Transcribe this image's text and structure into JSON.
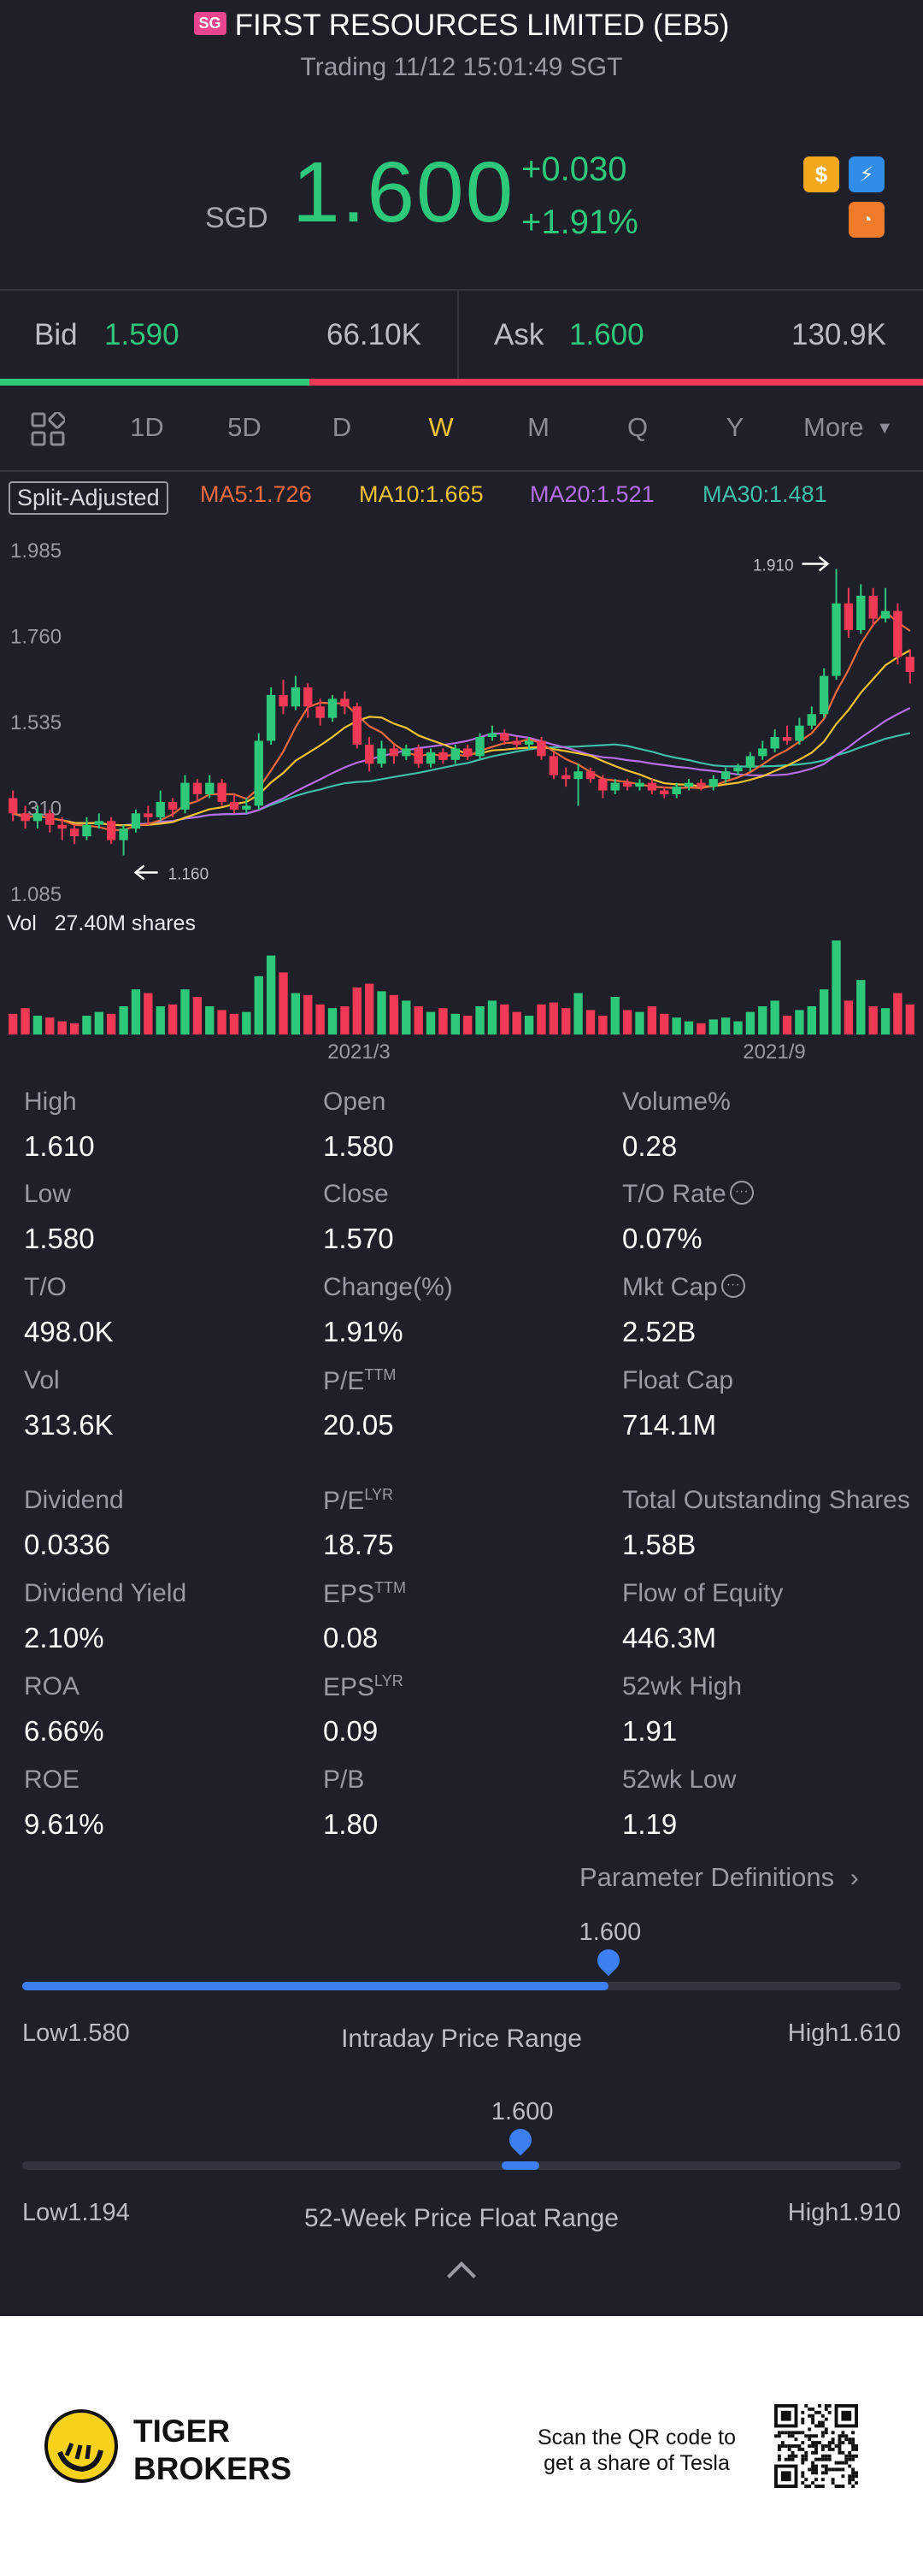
{
  "header": {
    "badge": "SG",
    "title": "FIRST RESOURCES LIMITED (EB5)",
    "subtitle": "Trading 11/12 15:01:49 SGT"
  },
  "quote": {
    "currency": "SGD",
    "price": "1.600",
    "change": "+0.030",
    "change_pct": "+1.91%",
    "icons": [
      "dollar-icon",
      "lightning-icon",
      "pie-icon"
    ],
    "up_color": "#2ec87a",
    "down_color": "#f03a55"
  },
  "bidask": {
    "bid_label": "Bid",
    "bid_price": "1.590",
    "bid_size": "66.10K",
    "ask_label": "Ask",
    "ask_price": "1.600",
    "ask_size": "130.9K",
    "bid_share": 0.335
  },
  "tabs": {
    "items": [
      "1D",
      "5D",
      "D",
      "W",
      "M",
      "Q",
      "Y"
    ],
    "active": "W",
    "more": "More"
  },
  "legend": {
    "split": "Split-Adjusted",
    "ma5": "MA5:1.726",
    "ma10": "MA10:1.665",
    "ma20": "MA20:1.521",
    "ma30": "MA30:1.481"
  },
  "chart_data": {
    "type": "candlestick",
    "y_ticks": [
      "1.985",
      "1.760",
      "1.535",
      "1.310",
      "1.085"
    ],
    "ylim": [
      1.085,
      1.985
    ],
    "x_ticks": [
      "2021/3",
      "2021/9"
    ],
    "max_label": "1.910",
    "min_label": "1.160",
    "volume_label": "Vol   27.40M shares",
    "candles": [
      [
        1.31,
        1.27,
        1.33,
        1.25,
        "d"
      ],
      [
        1.27,
        1.25,
        1.29,
        1.23,
        "d"
      ],
      [
        1.25,
        1.27,
        1.29,
        1.23,
        "u"
      ],
      [
        1.27,
        1.24,
        1.28,
        1.22,
        "d"
      ],
      [
        1.24,
        1.23,
        1.26,
        1.2,
        "d"
      ],
      [
        1.23,
        1.21,
        1.24,
        1.19,
        "d"
      ],
      [
        1.21,
        1.24,
        1.26,
        1.2,
        "u"
      ],
      [
        1.24,
        1.25,
        1.27,
        1.23,
        "u"
      ],
      [
        1.25,
        1.2,
        1.26,
        1.19,
        "d"
      ],
      [
        1.2,
        1.23,
        1.24,
        1.16,
        "u"
      ],
      [
        1.23,
        1.27,
        1.28,
        1.22,
        "u"
      ],
      [
        1.27,
        1.26,
        1.29,
        1.24,
        "d"
      ],
      [
        1.26,
        1.3,
        1.33,
        1.25,
        "u"
      ],
      [
        1.3,
        1.28,
        1.31,
        1.26,
        "d"
      ],
      [
        1.28,
        1.35,
        1.37,
        1.27,
        "u"
      ],
      [
        1.35,
        1.32,
        1.36,
        1.3,
        "d"
      ],
      [
        1.32,
        1.35,
        1.37,
        1.31,
        "u"
      ],
      [
        1.35,
        1.3,
        1.36,
        1.29,
        "d"
      ],
      [
        1.3,
        1.28,
        1.32,
        1.27,
        "d"
      ],
      [
        1.28,
        1.29,
        1.31,
        1.27,
        "u"
      ],
      [
        1.29,
        1.46,
        1.48,
        1.28,
        "u"
      ],
      [
        1.46,
        1.58,
        1.6,
        1.45,
        "u"
      ],
      [
        1.58,
        1.55,
        1.62,
        1.53,
        "d"
      ],
      [
        1.55,
        1.6,
        1.63,
        1.54,
        "u"
      ],
      [
        1.6,
        1.55,
        1.61,
        1.52,
        "d"
      ],
      [
        1.55,
        1.52,
        1.57,
        1.5,
        "d"
      ],
      [
        1.52,
        1.57,
        1.58,
        1.51,
        "u"
      ],
      [
        1.57,
        1.55,
        1.59,
        1.53,
        "d"
      ],
      [
        1.55,
        1.45,
        1.56,
        1.44,
        "d"
      ],
      [
        1.45,
        1.4,
        1.47,
        1.38,
        "d"
      ],
      [
        1.4,
        1.44,
        1.46,
        1.39,
        "u"
      ],
      [
        1.44,
        1.42,
        1.45,
        1.4,
        "d"
      ],
      [
        1.42,
        1.44,
        1.45,
        1.41,
        "u"
      ],
      [
        1.44,
        1.4,
        1.45,
        1.39,
        "d"
      ],
      [
        1.4,
        1.43,
        1.44,
        1.39,
        "u"
      ],
      [
        1.43,
        1.41,
        1.44,
        1.4,
        "d"
      ],
      [
        1.41,
        1.44,
        1.45,
        1.4,
        "u"
      ],
      [
        1.44,
        1.42,
        1.45,
        1.41,
        "d"
      ],
      [
        1.42,
        1.47,
        1.48,
        1.41,
        "u"
      ],
      [
        1.47,
        1.48,
        1.5,
        1.46,
        "u"
      ],
      [
        1.48,
        1.46,
        1.49,
        1.45,
        "d"
      ],
      [
        1.46,
        1.45,
        1.47,
        1.44,
        "d"
      ],
      [
        1.45,
        1.46,
        1.47,
        1.44,
        "u"
      ],
      [
        1.46,
        1.42,
        1.47,
        1.41,
        "d"
      ],
      [
        1.42,
        1.37,
        1.43,
        1.36,
        "d"
      ],
      [
        1.37,
        1.36,
        1.39,
        1.34,
        "d"
      ],
      [
        1.36,
        1.38,
        1.4,
        1.29,
        "u"
      ],
      [
        1.38,
        1.36,
        1.39,
        1.35,
        "d"
      ],
      [
        1.36,
        1.33,
        1.37,
        1.31,
        "d"
      ],
      [
        1.33,
        1.35,
        1.36,
        1.32,
        "u"
      ],
      [
        1.35,
        1.34,
        1.36,
        1.33,
        "d"
      ],
      [
        1.34,
        1.35,
        1.36,
        1.33,
        "u"
      ],
      [
        1.35,
        1.33,
        1.36,
        1.32,
        "d"
      ],
      [
        1.33,
        1.32,
        1.34,
        1.31,
        "d"
      ],
      [
        1.32,
        1.34,
        1.35,
        1.31,
        "u"
      ],
      [
        1.34,
        1.35,
        1.36,
        1.33,
        "u"
      ],
      [
        1.35,
        1.34,
        1.36,
        1.33,
        "d"
      ],
      [
        1.34,
        1.36,
        1.37,
        1.33,
        "u"
      ],
      [
        1.36,
        1.38,
        1.39,
        1.35,
        "u"
      ],
      [
        1.38,
        1.39,
        1.4,
        1.37,
        "u"
      ],
      [
        1.39,
        1.42,
        1.43,
        1.38,
        "u"
      ],
      [
        1.42,
        1.44,
        1.46,
        1.41,
        "u"
      ],
      [
        1.44,
        1.47,
        1.49,
        1.43,
        "u"
      ],
      [
        1.47,
        1.46,
        1.5,
        1.45,
        "d"
      ],
      [
        1.46,
        1.5,
        1.52,
        1.45,
        "u"
      ],
      [
        1.5,
        1.53,
        1.55,
        1.49,
        "u"
      ],
      [
        1.53,
        1.63,
        1.65,
        1.52,
        "u"
      ],
      [
        1.63,
        1.82,
        1.91,
        1.62,
        "u"
      ],
      [
        1.82,
        1.75,
        1.86,
        1.73,
        "d"
      ],
      [
        1.75,
        1.84,
        1.87,
        1.74,
        "u"
      ],
      [
        1.84,
        1.78,
        1.86,
        1.76,
        "d"
      ],
      [
        1.78,
        1.8,
        1.86,
        1.77,
        "u"
      ],
      [
        1.8,
        1.68,
        1.82,
        1.66,
        "d"
      ],
      [
        1.68,
        1.64,
        1.7,
        1.61,
        "d"
      ]
    ],
    "volumes": [
      0.22,
      0.28,
      0.2,
      0.18,
      0.14,
      0.12,
      0.2,
      0.24,
      0.22,
      0.3,
      0.48,
      0.44,
      0.3,
      0.32,
      0.48,
      0.4,
      0.3,
      0.26,
      0.22,
      0.24,
      0.62,
      0.84,
      0.66,
      0.44,
      0.42,
      0.32,
      0.28,
      0.3,
      0.5,
      0.54,
      0.46,
      0.42,
      0.36,
      0.3,
      0.24,
      0.28,
      0.22,
      0.2,
      0.3,
      0.36,
      0.32,
      0.24,
      0.2,
      0.32,
      0.34,
      0.28,
      0.44,
      0.26,
      0.2,
      0.4,
      0.26,
      0.24,
      0.3,
      0.22,
      0.18,
      0.14,
      0.12,
      0.16,
      0.18,
      0.14,
      0.24,
      0.3,
      0.36,
      0.2,
      0.26,
      0.3,
      0.48,
      1.0,
      0.36,
      0.58,
      0.3,
      0.28,
      0.44,
      0.32
    ]
  },
  "stats": {
    "col1": [
      {
        "label": "High",
        "value": "1.610"
      },
      {
        "label": "Low",
        "value": "1.580"
      },
      {
        "label": "T/O",
        "value": "498.0K"
      },
      {
        "label": "Vol",
        "value": "313.6K"
      },
      {
        "label": "Dividend",
        "value": "0.0336"
      },
      {
        "label": "Dividend Yield",
        "value": "2.10%"
      },
      {
        "label": "ROA",
        "value": "6.66%"
      },
      {
        "label": "ROE",
        "value": "9.61%"
      }
    ],
    "col2": [
      {
        "label": "Open",
        "value": "1.580"
      },
      {
        "label": "Close",
        "value": "1.570"
      },
      {
        "label": "Change(%)",
        "value": "1.91%"
      },
      {
        "label": "P/E",
        "sup": "TTM",
        "value": "20.05"
      },
      {
        "label": "P/E",
        "sup": "LYR",
        "value": "18.75"
      },
      {
        "label": "EPS",
        "sup": "TTM",
        "value": "0.08"
      },
      {
        "label": "EPS",
        "sup": "LYR",
        "value": "0.09"
      },
      {
        "label": "P/B",
        "value": "1.80"
      }
    ],
    "col3": [
      {
        "label": "Volume%",
        "value": "0.28"
      },
      {
        "label": "T/O Rate",
        "value": "0.07%"
      },
      {
        "label": "Mkt Cap",
        "value": "2.52B"
      },
      {
        "label": "Float Cap",
        "value": "714.1M"
      },
      {
        "label": "Total Outstanding Shares",
        "value": "1.58B"
      },
      {
        "label": "Flow of Equity",
        "value": "446.3M"
      },
      {
        "label": "52wk High",
        "value": "1.91"
      },
      {
        "label": "52wk Low",
        "value": "1.19"
      }
    ],
    "param_def": "Parameter Definitions"
  },
  "intraday": {
    "value": "1.600",
    "low": "Low1.580",
    "high": "High1.610",
    "title": "Intraday Price Range",
    "position": 0.667
  },
  "week52": {
    "value": "1.600",
    "low": "Low1.194",
    "high": "High1.910",
    "title": "52-Week Price Float Range",
    "position": 0.567
  },
  "footer": {
    "brand_line1": "TIGER",
    "brand_line2": "BROKERS",
    "scan_line1": "Scan the QR code to",
    "scan_line2": "get a share of Tesla"
  }
}
